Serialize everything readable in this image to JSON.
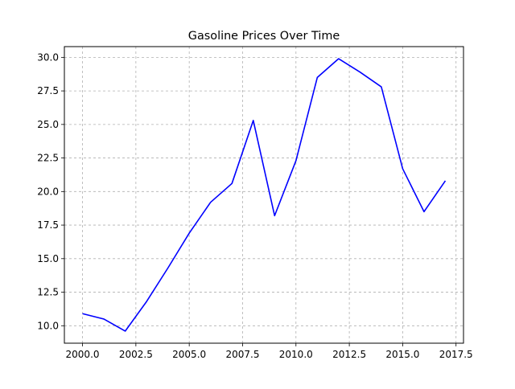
{
  "chart_data": {
    "type": "line",
    "title": "Gasoline Prices Over Time",
    "xlabel": "",
    "ylabel": "",
    "xlim": [
      1999.15,
      2017.85
    ],
    "ylim": [
      8.7,
      30.8
    ],
    "xticks": [
      2000.0,
      2002.5,
      2005.0,
      2007.5,
      2010.0,
      2012.5,
      2015.0,
      2017.5
    ],
    "xtick_labels": [
      "2000.0",
      "2002.5",
      "2005.0",
      "2007.5",
      "2010.0",
      "2012.5",
      "2015.0",
      "2017.5"
    ],
    "yticks": [
      10.0,
      12.5,
      15.0,
      17.5,
      20.0,
      22.5,
      25.0,
      27.5,
      30.0
    ],
    "ytick_labels": [
      "10.0",
      "12.5",
      "15.0",
      "17.5",
      "20.0",
      "22.5",
      "25.0",
      "27.5",
      "30.0"
    ],
    "grid": true,
    "series": [
      {
        "color": "#0000ff",
        "x": [
          2000,
          2001,
          2002,
          2003,
          2004,
          2005,
          2006,
          2007,
          2008,
          2009,
          2010,
          2011,
          2012,
          2013,
          2014,
          2015,
          2016,
          2017
        ],
        "y": [
          10.9,
          10.5,
          9.6,
          11.8,
          14.3,
          16.9,
          19.2,
          20.6,
          25.3,
          18.2,
          22.3,
          28.5,
          29.9,
          28.9,
          27.8,
          21.7,
          18.5,
          20.8
        ]
      }
    ]
  }
}
